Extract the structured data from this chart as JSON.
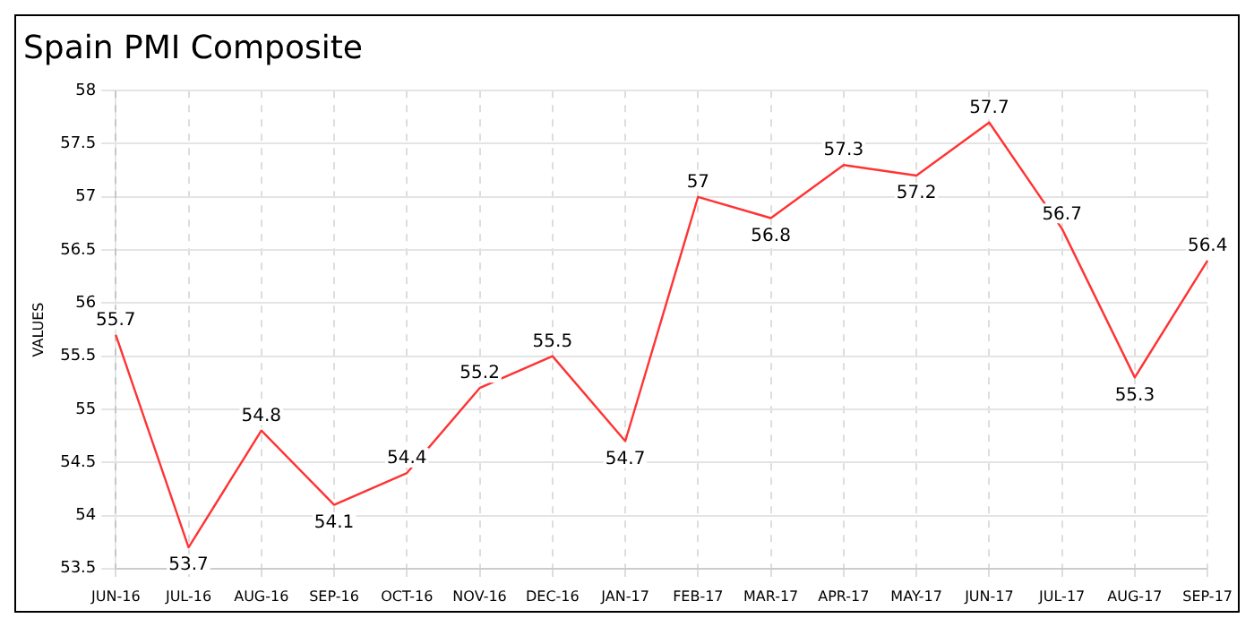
{
  "chart_data": {
    "type": "line",
    "title": "Spain PMI Composite",
    "ylabel": "VALUES",
    "categories": [
      "JUN-16",
      "JUL-16",
      "AUG-16",
      "SEP-16",
      "OCT-16",
      "NOV-16",
      "DEC-16",
      "JAN-17",
      "FEB-17",
      "MAR-17",
      "APR-17",
      "MAY-17",
      "JUN-17",
      "JUL-17",
      "AUG-17",
      "SEP-17"
    ],
    "series": [
      {
        "color": "#ff3333",
        "values": [
          55.7,
          53.7,
          54.8,
          54.1,
          54.4,
          55.2,
          55.5,
          54.7,
          57,
          56.8,
          57.3,
          57.2,
          57.7,
          56.7,
          55.3,
          56.4
        ]
      }
    ],
    "ylim": [
      53.5,
      58
    ],
    "yticks": [
      53.5,
      54,
      54.5,
      55,
      55.5,
      56,
      56.5,
      57,
      57.5,
      58
    ],
    "grid": true,
    "data_labels": true,
    "marker": "none",
    "line_style": "solid",
    "legend": false
  }
}
